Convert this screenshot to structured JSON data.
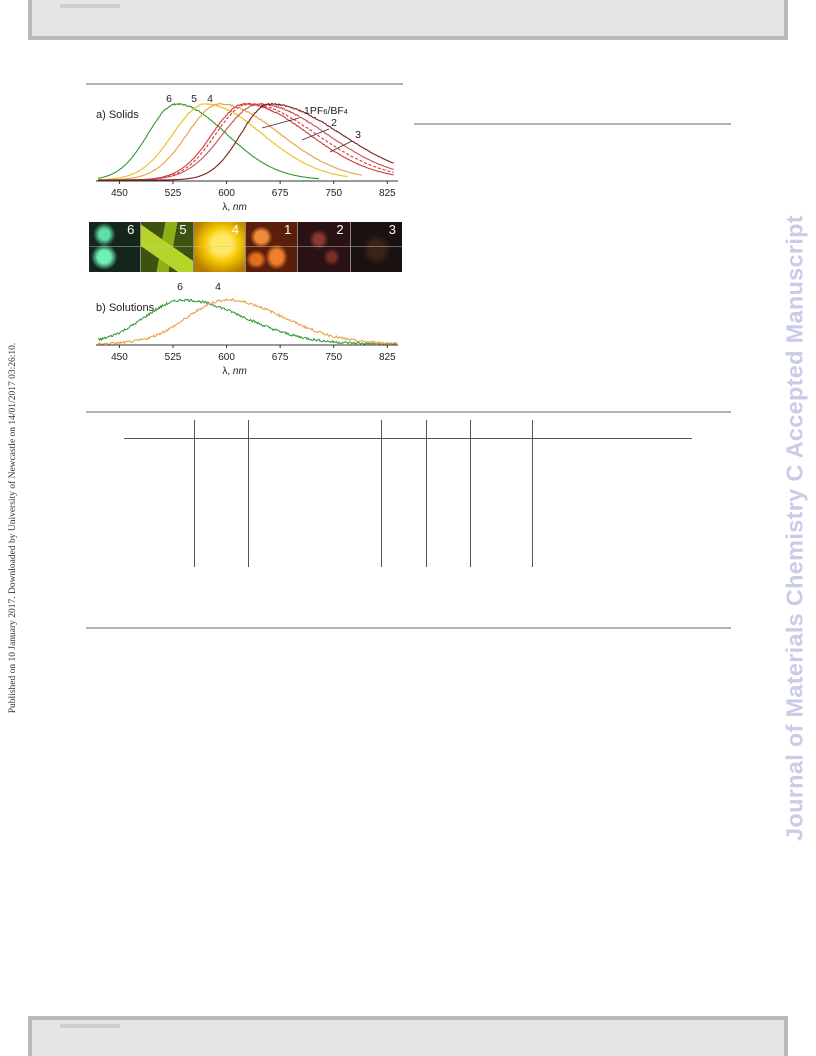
{
  "side_note": "Published on 10 January 2017. Downloaded by University of Newcastle on 14/01/2017 03:26:10.",
  "watermark": "Journal of Materials Chemistry C Accepted Manuscript",
  "figure": {
    "panel_a_label": "a) Solids",
    "panel_b_label": "b) Solutions",
    "x_axis_label_symbol": "λ,",
    "x_axis_label_unit": "nm",
    "photo_labels": [
      "6",
      "5",
      "4",
      "1",
      "2",
      "3"
    ],
    "photo_colors": {
      "6": "#1a3a2a",
      "5": "#4a6a10",
      "4": "#d6a000",
      "1": "#c24a10",
      "2": "#3a1a1a",
      "3": "#1a1412"
    }
  },
  "chart_data": [
    {
      "type": "line",
      "title": "a) Solids",
      "xlabel": "λ, nm",
      "ylabel": "",
      "xlim": [
        420,
        840
      ],
      "xticks": [
        450,
        525,
        600,
        675,
        750,
        825
      ],
      "grid": false,
      "series": [
        {
          "name": "6",
          "color": "#2e9a2e",
          "style": "solid",
          "peak": 530,
          "fwhm_left": 40,
          "fwhm_right": 70,
          "end": 730
        },
        {
          "name": "5",
          "color": "#e8c020",
          "style": "solid",
          "peak": 570,
          "fwhm_left": 45,
          "fwhm_right": 80,
          "end": 770
        },
        {
          "name": "4",
          "color": "#e8a040",
          "style": "solid",
          "peak": 590,
          "fwhm_left": 45,
          "fwhm_right": 85,
          "end": 790
        },
        {
          "name": "1PF6/BF4",
          "color": "#d23a3a",
          "style": "solid",
          "peak": 625,
          "fwhm_left": 45,
          "fwhm_right": 90,
          "end": 835
        },
        {
          "name": "1PF6/BF4",
          "color": "#d23a3a",
          "style": "dashed",
          "peak": 630,
          "fwhm_left": 45,
          "fwhm_right": 95,
          "end": 835
        },
        {
          "name": "2",
          "color": "#c85050",
          "style": "solid",
          "peak": 645,
          "fwhm_left": 50,
          "fwhm_right": 95,
          "end": 835
        },
        {
          "name": "3",
          "color": "#7a1e1e",
          "style": "solid",
          "peak": 660,
          "fwhm_left": 40,
          "fwhm_right": 100,
          "end": 835
        }
      ],
      "labels": [
        "6",
        "5",
        "4",
        "1PF6/BF4",
        "2",
        "3"
      ]
    },
    {
      "type": "line",
      "title": "b) Solutions",
      "xlabel": "λ, nm",
      "ylabel": "",
      "xlim": [
        420,
        840
      ],
      "xticks": [
        450,
        525,
        600,
        675,
        750,
        825
      ],
      "grid": false,
      "series": [
        {
          "name": "6",
          "color": "#2e9a2e",
          "style": "noisy",
          "peak": 540,
          "fwhm_left": 55,
          "fwhm_right": 85
        },
        {
          "name": "4",
          "color": "#e8a040",
          "style": "noisy",
          "peak": 600,
          "fwhm_left": 55,
          "fwhm_right": 80
        }
      ],
      "labels": [
        "6",
        "4"
      ]
    }
  ]
}
